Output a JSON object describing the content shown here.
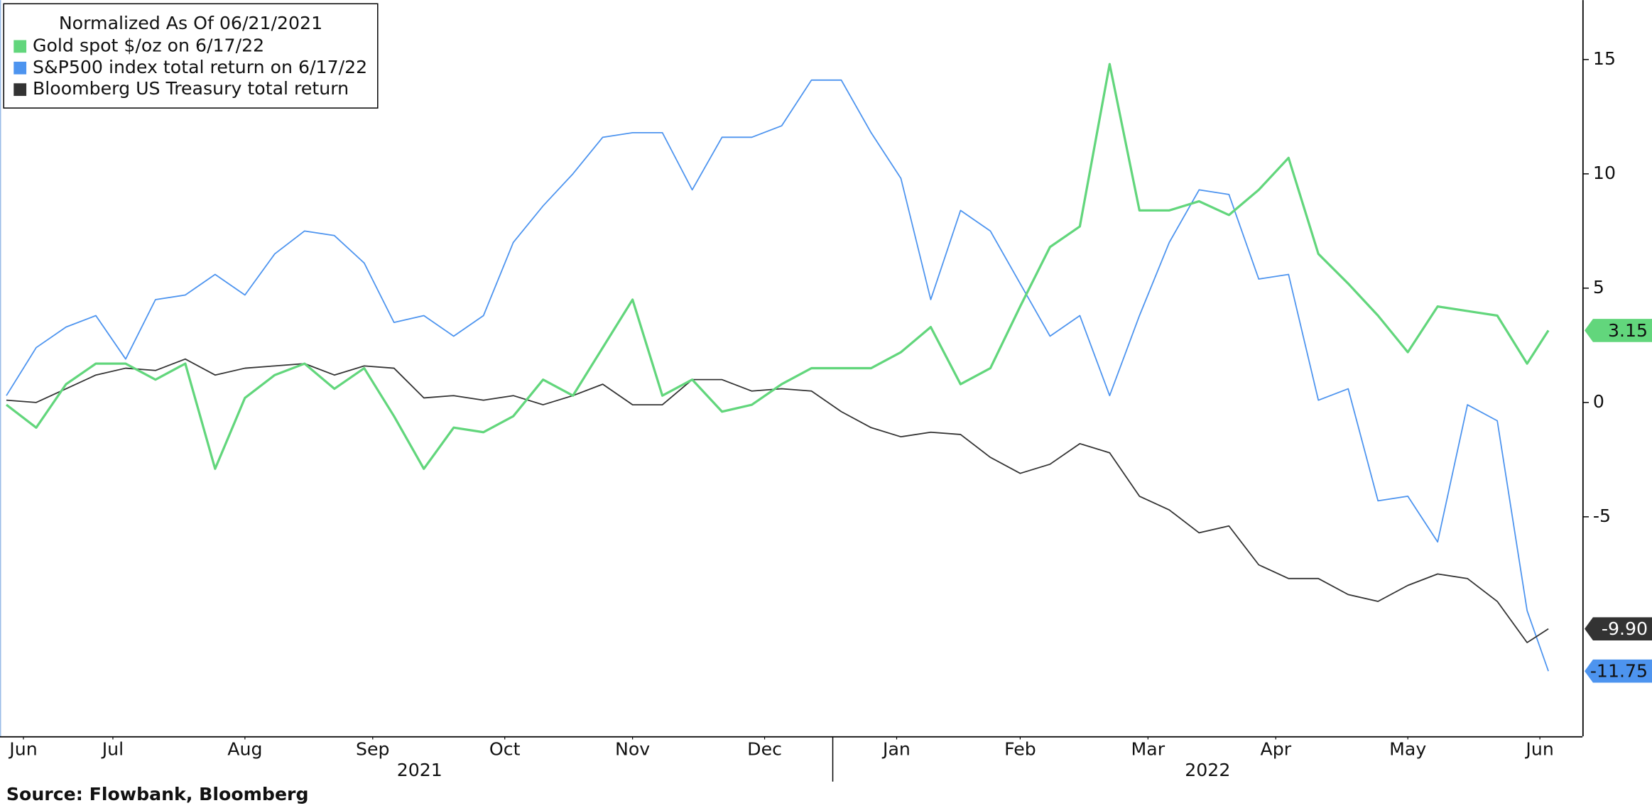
{
  "chart_data": {
    "type": "line",
    "legend_title": "Normalized As Of 06/21/2021",
    "source": "Source: Flowbank, Bloomberg",
    "legend_position": "upper left",
    "x": [
      0,
      7,
      14,
      21,
      28,
      35,
      42,
      49,
      56,
      63,
      70,
      77,
      84,
      91,
      98,
      105,
      112,
      119,
      126,
      133,
      140,
      147,
      154,
      161,
      168,
      175,
      182,
      189,
      196,
      203,
      210,
      217,
      224,
      231,
      238,
      245,
      252,
      259,
      266,
      273,
      280,
      287,
      294,
      301,
      308,
      315,
      322,
      329,
      336,
      343,
      350,
      357,
      362
    ],
    "xlim": [
      -1.5,
      370
    ],
    "xticks": [
      {
        "value": 4,
        "label": "Jun"
      },
      {
        "value": 25,
        "label": "Jul"
      },
      {
        "value": 56,
        "label": "Aug"
      },
      {
        "value": 86,
        "label": "Sep"
      },
      {
        "value": 117,
        "label": "Oct"
      },
      {
        "value": 147,
        "label": "Nov"
      },
      {
        "value": 178,
        "label": "Dec"
      },
      {
        "value": 209,
        "label": "Jan"
      },
      {
        "value": 238,
        "label": "Feb"
      },
      {
        "value": 268,
        "label": "Mar"
      },
      {
        "value": 298,
        "label": "Apr"
      },
      {
        "value": 329,
        "label": "May"
      },
      {
        "value": 360,
        "label": "Jun"
      }
    ],
    "year_labels": [
      {
        "value": 97,
        "label": "2021"
      },
      {
        "value": 282,
        "label": "2022"
      }
    ],
    "year_ticks": [
      194
    ],
    "ylim": [
      -14.6,
      17.6
    ],
    "yticks": [
      -5,
      0,
      5,
      10,
      15
    ],
    "series": [
      {
        "name": "Gold spot $/oz on 6/17/22",
        "color": "#62d67c",
        "width": 2.2,
        "label_text_color": "#111",
        "values": [
          -0.1,
          -1.1,
          0.8,
          1.7,
          1.7,
          1.0,
          1.7,
          -2.9,
          0.2,
          1.2,
          1.7,
          0.6,
          1.5,
          -0.6,
          -2.9,
          -1.1,
          -1.3,
          -0.6,
          1.0,
          0.3,
          2.4,
          4.5,
          0.3,
          1.0,
          -0.4,
          -0.1,
          0.8,
          1.5,
          1.5,
          1.5,
          2.2,
          3.3,
          0.8,
          1.5,
          4.2,
          6.8,
          7.7,
          14.8,
          8.4,
          8.4,
          8.8,
          8.2,
          9.3,
          10.7,
          6.5,
          5.2,
          3.8,
          2.2,
          4.2,
          4.0,
          3.8,
          1.7,
          3.15
        ],
        "value_labels": [
          null,
          null,
          null,
          null,
          null,
          null,
          null,
          null,
          null,
          null,
          null,
          null,
          null,
          null,
          null,
          null,
          null,
          null,
          null,
          null,
          null,
          null,
          null,
          null,
          null,
          null,
          null,
          null,
          null,
          null,
          null,
          null,
          null,
          null,
          null,
          null,
          null,
          null,
          null,
          null,
          null,
          null,
          null,
          null,
          null,
          null,
          null,
          null,
          null,
          null,
          null,
          null,
          "3.15"
        ]
      },
      {
        "name": "S&P500 index total return on 6/17/22",
        "color": "#4d94ef",
        "width": 1.2,
        "label_text_color": "#111",
        "values": [
          0.3,
          2.4,
          3.3,
          3.8,
          1.9,
          4.5,
          4.7,
          5.6,
          4.7,
          6.5,
          7.5,
          7.3,
          6.1,
          3.5,
          3.8,
          2.9,
          3.8,
          7.0,
          8.6,
          10.0,
          11.6,
          11.8,
          11.8,
          9.3,
          11.6,
          11.6,
          12.1,
          14.1,
          14.1,
          11.8,
          9.8,
          4.5,
          8.4,
          7.5,
          5.2,
          2.9,
          3.8,
          0.3,
          3.8,
          7.0,
          9.3,
          9.1,
          5.4,
          5.6,
          0.1,
          0.6,
          -4.3,
          -4.1,
          -6.1,
          -0.1,
          -0.8,
          -9.1,
          -11.75
        ],
        "value_labels": [
          null,
          null,
          null,
          null,
          null,
          null,
          null,
          null,
          null,
          null,
          null,
          null,
          null,
          null,
          null,
          null,
          null,
          null,
          null,
          null,
          null,
          null,
          null,
          null,
          null,
          null,
          null,
          null,
          null,
          null,
          null,
          null,
          null,
          null,
          null,
          null,
          null,
          null,
          null,
          null,
          null,
          null,
          null,
          null,
          null,
          null,
          null,
          null,
          null,
          null,
          null,
          null,
          "-11.75"
        ]
      },
      {
        "name": "Bloomberg US Treasury total return",
        "color": "#333333",
        "width": 1.2,
        "label_text_color": "#fff",
        "values": [
          0.1,
          0,
          0.6,
          1.2,
          1.5,
          1.4,
          1.9,
          1.2,
          1.5,
          1.6,
          1.7,
          1.2,
          1.6,
          1.5,
          0.2,
          0.3,
          0.1,
          0.3,
          -0.1,
          0.3,
          0.8,
          -0.1,
          -0.1,
          1.0,
          1.0,
          0.5,
          0.6,
          0.5,
          -0.4,
          -1.1,
          -1.5,
          -1.3,
          -1.4,
          -2.4,
          -3.1,
          -2.7,
          -1.8,
          -2.2,
          -4.1,
          -4.7,
          -5.7,
          -5.4,
          -7.1,
          -7.7,
          -7.7,
          -8.4,
          -8.7,
          -8.0,
          -7.5,
          -7.7,
          -8.7,
          -10.5,
          -9.9
        ],
        "value_labels": [
          null,
          null,
          null,
          null,
          null,
          null,
          null,
          null,
          null,
          null,
          null,
          null,
          null,
          null,
          null,
          null,
          null,
          null,
          null,
          null,
          null,
          null,
          null,
          null,
          null,
          null,
          null,
          null,
          null,
          null,
          null,
          null,
          null,
          null,
          null,
          null,
          null,
          null,
          null,
          null,
          null,
          null,
          null,
          null,
          null,
          null,
          null,
          null,
          null,
          null,
          null,
          null,
          "-9.90"
        ]
      }
    ]
  }
}
